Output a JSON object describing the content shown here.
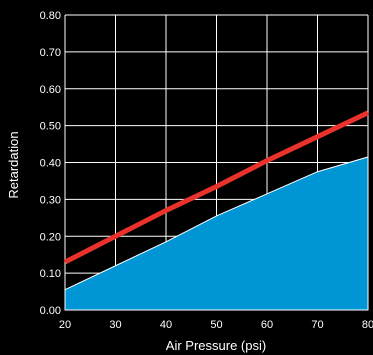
{
  "chart_data": {
    "type": "line",
    "title": "",
    "xlabel": "Air Pressure (psi)",
    "ylabel": "Retardation",
    "xlim": [
      20,
      80
    ],
    "ylim": [
      0,
      0.8
    ],
    "x_ticks": [
      20,
      30,
      40,
      50,
      60,
      70,
      80
    ],
    "x_tick_labels": [
      "20",
      "30",
      "40",
      "50",
      "60",
      "70",
      "80"
    ],
    "y_ticks": [
      0,
      0.1,
      0.2,
      0.3,
      0.4,
      0.5,
      0.6,
      0.7,
      0.8
    ],
    "y_tick_labels": [
      "0.00",
      "0.10",
      "0.20",
      "0.30",
      "0.40",
      "0.50",
      "0.60",
      "0.70",
      "0.80"
    ],
    "grid": true,
    "series": [
      {
        "kind": "line",
        "color": "#e8322b",
        "x": [
          20,
          30,
          40,
          50,
          60,
          70,
          80
        ],
        "y": [
          0.13,
          0.2,
          0.27,
          0.335,
          0.405,
          0.47,
          0.535
        ]
      },
      {
        "kind": "area",
        "color": "#0096d6",
        "x": [
          20,
          30,
          40,
          50,
          60,
          70,
          80
        ],
        "y": [
          0.055,
          0.12,
          0.185,
          0.255,
          0.315,
          0.375,
          0.415
        ]
      }
    ]
  }
}
